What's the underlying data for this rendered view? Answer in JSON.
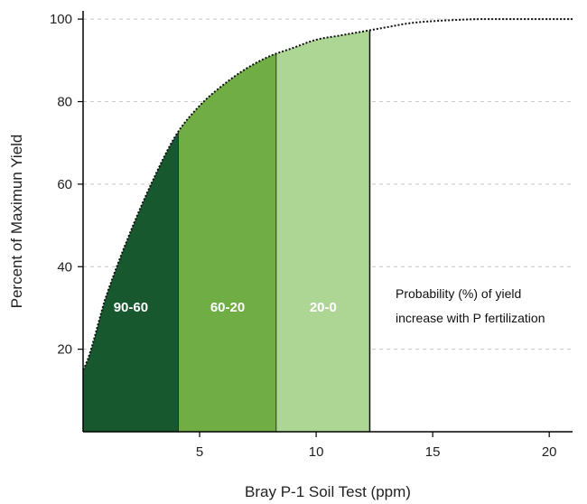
{
  "chart_data": {
    "type": "area",
    "title": "",
    "xlabel": "Bray P-1 Soil Test (ppm)",
    "ylabel": "Percent of Maximun Yield",
    "xlim": [
      0,
      21
    ],
    "ylim": [
      0,
      102
    ],
    "x_ticks": [
      5,
      10,
      15,
      20
    ],
    "y_ticks": [
      20,
      40,
      60,
      80,
      100
    ],
    "grid": "horizontal dashed",
    "curve": {
      "x": [
        0,
        1,
        2,
        3,
        4,
        5,
        6,
        7,
        8,
        9,
        10,
        11,
        12,
        13,
        14,
        15,
        16,
        17,
        18,
        19,
        20,
        21
      ],
      "y": [
        15,
        33,
        48,
        61,
        72,
        79,
        84,
        88,
        91,
        93,
        95,
        96,
        97,
        98,
        99,
        99.5,
        99.8,
        100,
        100,
        100,
        100,
        100
      ]
    },
    "bands": [
      {
        "label": "90-60",
        "x_start": 0,
        "x_end": 4.1,
        "color": "#17582e"
      },
      {
        "label": "60-20",
        "x_start": 4.1,
        "x_end": 8.3,
        "color": "#71ad45"
      },
      {
        "label": "20-0",
        "x_start": 8.3,
        "x_end": 12.3,
        "color": "#add694"
      }
    ],
    "annotation": [
      "Probability (%) of yield",
      "increase with P fertilization"
    ]
  }
}
